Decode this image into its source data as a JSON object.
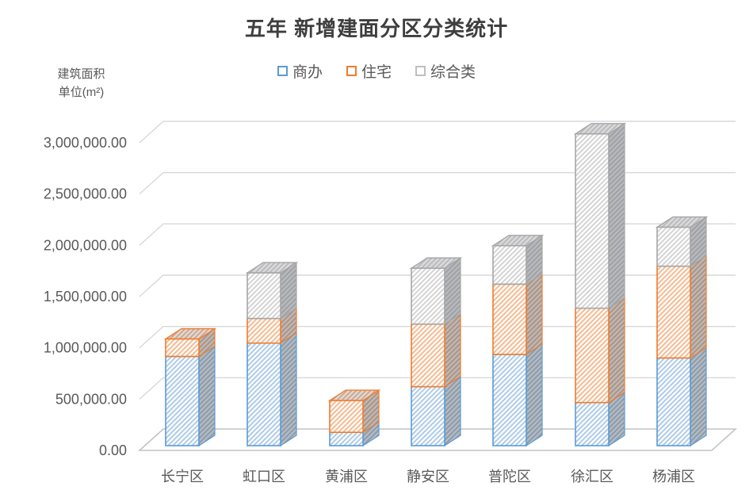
{
  "title": "五年 新增建面分区分类统计",
  "y_axis_title_line1": "建筑面积",
  "y_axis_title_line2": "单位(m²)",
  "legend": [
    {
      "label": "商办",
      "color": "#5B9BD5"
    },
    {
      "label": "住宅",
      "color": "#ED7D31"
    },
    {
      "label": "综合类",
      "color": "#BFBFBF"
    }
  ],
  "chart_data": {
    "type": "bar",
    "subtype": "3d-stacked-column",
    "title": "五年 新增建面分区分类统计",
    "ylabel": "建筑面积 单位(m²)",
    "categories": [
      "长宁区",
      "虹口区",
      "黄浦区",
      "静安区",
      "普陀区",
      "徐汇区",
      "杨浦区"
    ],
    "series": [
      {
        "name": "商办",
        "color": "#5B9BD5",
        "stripe": "#ADCBE9",
        "values": [
          870000,
          1000000,
          130000,
          575000,
          890000,
          420000,
          855000
        ]
      },
      {
        "name": "住宅",
        "color": "#ED7D31",
        "stripe": "#F6BA90",
        "values": [
          170000,
          240000,
          310000,
          610000,
          685000,
          920000,
          895000
        ]
      },
      {
        "name": "综合类",
        "color": "#A6A6A6",
        "stripe": "#D4D4D4",
        "values": [
          0,
          445000,
          0,
          545000,
          375000,
          1700000,
          380000
        ]
      }
    ],
    "ylim": [
      0,
      3000000
    ],
    "ytick_step": 500000,
    "ytick_labels": [
      "0.00",
      "500,000.00",
      "1,000,000.00",
      "1,500,000.00",
      "2,000,000.00",
      "2,500,000.00",
      "3,000,000.00"
    ],
    "grid": true,
    "legend_position": "top",
    "colors": {
      "gridline": "#D8D8D8",
      "floor_edge": "#C4C4C4",
      "text": "#595959",
      "title": "#3E3E3E"
    }
  }
}
